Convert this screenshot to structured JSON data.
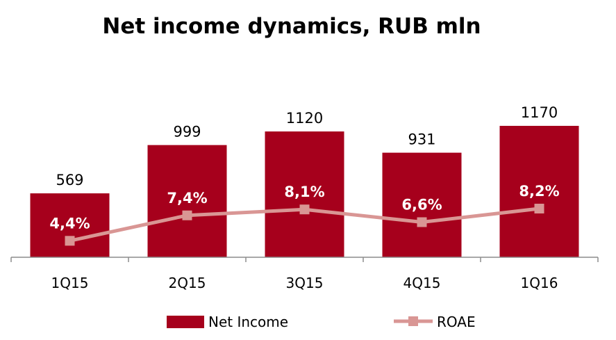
{
  "chart_data": {
    "type": "bar",
    "title": "Net income dynamics, RUB mln",
    "categories": [
      "1Q15",
      "2Q15",
      "3Q15",
      "4Q15",
      "1Q16"
    ],
    "series": [
      {
        "name": "Net Income",
        "type": "bar",
        "values": [
          569,
          999,
          1120,
          931,
          1170
        ],
        "labels": [
          "569",
          "999",
          "1120",
          "931",
          "1170"
        ],
        "color": "#a6001c"
      },
      {
        "name": "ROAE",
        "type": "line",
        "values": [
          4.4,
          7.4,
          8.1,
          6.6,
          8.2
        ],
        "labels": [
          "4,4%",
          "7,4%",
          "8,1%",
          "6,6%",
          "8,2%"
        ],
        "color": "#d99694"
      }
    ],
    "legend_position": "bottom",
    "grid": false
  }
}
